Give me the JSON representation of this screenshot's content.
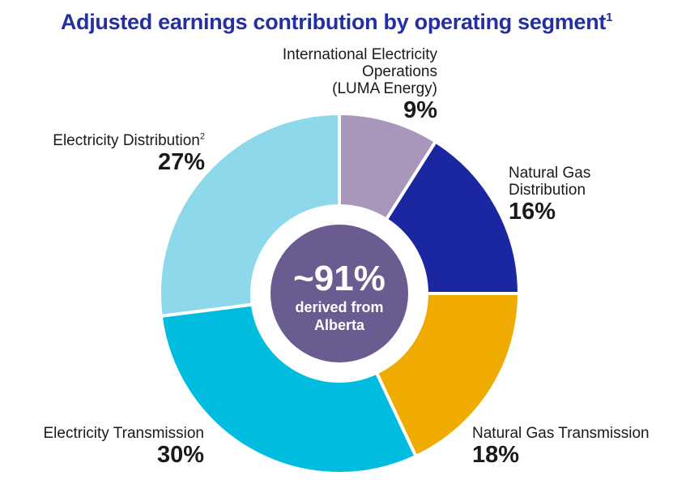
{
  "colors": {
    "title": "#2430a0",
    "center_circle": "#6a5b91",
    "International Electricity Operations (LUMA Energy)": "#a996bb",
    "Natural Gas Distribution": "#1b27a0",
    "Natural Gas Transmission": "#f0ab00",
    "Electricity Transmission": "#00bde0",
    "Electricity Distribution": "#8dd8ea"
  },
  "center": {
    "big": "~91%",
    "line1": "derived from",
    "line2": "Alberta"
  },
  "chart_data": {
    "type": "pie",
    "title": "Adjusted earnings contribution by operating segment",
    "title_footnote": "1",
    "slices": [
      {
        "label": "International Electricity Operations (LUMA Energy)",
        "label_lines": [
          "International Electricity",
          "Operations",
          "(LUMA Energy)"
        ],
        "value": 9,
        "display": "9%"
      },
      {
        "label": "Natural Gas Distribution",
        "label_lines": [
          "Natural Gas",
          "Distribution"
        ],
        "value": 16,
        "display": "16%"
      },
      {
        "label": "Natural Gas Transmission",
        "label_lines": [
          "Natural Gas Transmission"
        ],
        "value": 18,
        "display": "18%"
      },
      {
        "label": "Electricity Transmission",
        "label_lines": [
          "Electricity Transmission"
        ],
        "value": 30,
        "display": "30%"
      },
      {
        "label": "Electricity Distribution",
        "label_lines": [
          "Electricity Distribution"
        ],
        "footnote": "2",
        "value": 27,
        "display": "27%"
      }
    ]
  }
}
